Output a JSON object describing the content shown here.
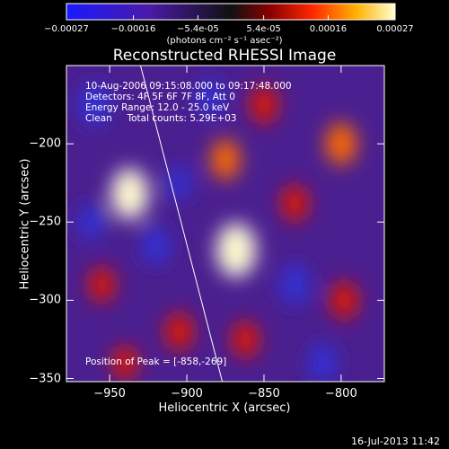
{
  "chart_data": {
    "type": "heatmap",
    "title": "Reconstructed RHESSI Image",
    "xlabel": "Heliocentric X (arcsec)",
    "ylabel": "Heliocentric Y (arcsec)",
    "xlim": [
      -978,
      -772
    ],
    "ylim": [
      -352,
      -150
    ],
    "x_ticks": [
      -950,
      -900,
      -850,
      -800
    ],
    "y_ticks": [
      -200,
      -250,
      -300,
      -350
    ],
    "colorbar": {
      "range": [
        -0.00027,
        0.00027
      ],
      "tick_values": [
        -0.00027,
        -0.00016,
        -5.4e-05,
        5.4e-05,
        0.00016,
        0.00027
      ],
      "tick_labels": [
        "-0.00027",
        "-0.00016",
        "-5.4e-05",
        "5.4e-05",
        "0.00016",
        "0.00027"
      ],
      "units": "(photons cm⁻² s⁻¹ asec⁻²)"
    },
    "annotations": [
      "10-Aug-2006 09:15:08.000 to 09:17:48.000",
      "Detectors: 4F 5F 6F 7F 8F, Att 0",
      "Energy Range: 12.0 - 25.0 keV",
      "Clean     Total counts: 5.29E+03"
    ],
    "peak_label": "Position of Peak = [-858,-269]",
    "peak_position": [
      -858,
      -269
    ],
    "sources": [
      {
        "x": -937,
        "y": -232,
        "amplitude": 0.00024
      },
      {
        "x": -868,
        "y": -268,
        "amplitude": 0.00027
      },
      {
        "x": -875,
        "y": -210,
        "amplitude": 0.00014
      },
      {
        "x": -850,
        "y": -175,
        "amplitude": 0.00012
      },
      {
        "x": -830,
        "y": -238,
        "amplitude": 0.00011
      },
      {
        "x": -955,
        "y": -290,
        "amplitude": 0.0001
      },
      {
        "x": -905,
        "y": -320,
        "amplitude": 0.00012
      },
      {
        "x": -862,
        "y": -325,
        "amplitude": 0.00011
      },
      {
        "x": -800,
        "y": -200,
        "amplitude": 0.00016
      },
      {
        "x": -798,
        "y": -300,
        "amplitude": 0.00012
      },
      {
        "x": -940,
        "y": -340,
        "amplitude": 9e-05
      },
      {
        "x": -960,
        "y": -175,
        "amplitude": -0.00016
      },
      {
        "x": -920,
        "y": -265,
        "amplitude": -0.00012
      },
      {
        "x": -905,
        "y": -225,
        "amplitude": -8e-05
      },
      {
        "x": -830,
        "y": -290,
        "amplitude": -0.00014
      },
      {
        "x": -885,
        "y": -170,
        "amplitude": -0.0001
      },
      {
        "x": -812,
        "y": -340,
        "amplitude": -0.00012
      },
      {
        "x": -962,
        "y": -250,
        "amplitude": -0.0001
      }
    ],
    "limb_line": [
      [
        -930,
        -150
      ],
      [
        -877,
        -352
      ]
    ]
  },
  "footer": {
    "timestamp": "16-Jul-2013 11:42"
  }
}
